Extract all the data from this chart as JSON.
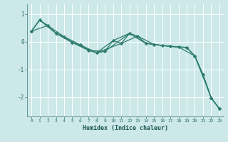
{
  "xlabel": "Humidex (Indice chaleur)",
  "bg_color": "#cce8e8",
  "grid_color": "#ffffff",
  "line_color": "#2e7d6e",
  "xlim": [
    -0.5,
    23.5
  ],
  "ylim": [
    -2.7,
    1.35
  ],
  "yticks": [
    1,
    0,
    -1,
    -2
  ],
  "xticks": [
    0,
    1,
    2,
    3,
    4,
    5,
    6,
    7,
    8,
    9,
    10,
    11,
    12,
    13,
    14,
    15,
    16,
    17,
    18,
    19,
    20,
    21,
    22,
    23
  ],
  "series1": [
    [
      0,
      0.38
    ],
    [
      1,
      0.78
    ],
    [
      2,
      0.58
    ],
    [
      3,
      0.3
    ],
    [
      4,
      0.18
    ],
    [
      5,
      -0.03
    ],
    [
      6,
      -0.12
    ],
    [
      7,
      -0.32
    ],
    [
      8,
      -0.4
    ],
    [
      9,
      -0.35
    ],
    [
      10,
      0.04
    ],
    [
      11,
      -0.06
    ],
    [
      12,
      0.3
    ],
    [
      13,
      0.2
    ],
    [
      14,
      -0.06
    ],
    [
      15,
      -0.1
    ],
    [
      16,
      -0.14
    ],
    [
      17,
      -0.17
    ],
    [
      18,
      -0.19
    ],
    [
      19,
      -0.21
    ],
    [
      20,
      -0.52
    ],
    [
      21,
      -1.2
    ],
    [
      22,
      -2.03
    ],
    [
      23,
      -2.42
    ]
  ],
  "series2": [
    [
      0,
      0.38
    ],
    [
      1,
      0.78
    ],
    [
      2,
      0.58
    ],
    [
      3,
      0.3
    ],
    [
      5,
      -0.03
    ],
    [
      7,
      -0.32
    ],
    [
      9,
      -0.35
    ],
    [
      12,
      0.3
    ],
    [
      14,
      -0.06
    ],
    [
      17,
      -0.17
    ],
    [
      19,
      -0.21
    ],
    [
      20,
      -0.52
    ],
    [
      22,
      -2.03
    ],
    [
      23,
      -2.42
    ]
  ],
  "series3": [
    [
      0,
      0.38
    ],
    [
      2,
      0.58
    ],
    [
      4,
      0.18
    ],
    [
      6,
      -0.12
    ],
    [
      8,
      -0.4
    ],
    [
      10,
      0.04
    ],
    [
      12,
      0.3
    ],
    [
      14,
      -0.06
    ],
    [
      16,
      -0.14
    ],
    [
      18,
      -0.19
    ],
    [
      20,
      -0.52
    ],
    [
      21,
      -1.2
    ],
    [
      22,
      -2.03
    ],
    [
      23,
      -2.42
    ]
  ],
  "series4": [
    [
      0,
      0.38
    ],
    [
      1,
      0.78
    ],
    [
      3,
      0.3
    ],
    [
      5,
      -0.03
    ],
    [
      8,
      -0.4
    ],
    [
      11,
      -0.06
    ],
    [
      13,
      0.2
    ],
    [
      15,
      -0.1
    ],
    [
      17,
      -0.17
    ],
    [
      19,
      -0.21
    ],
    [
      20,
      -0.52
    ],
    [
      21,
      -1.2
    ],
    [
      22,
      -2.03
    ],
    [
      23,
      -2.42
    ]
  ]
}
